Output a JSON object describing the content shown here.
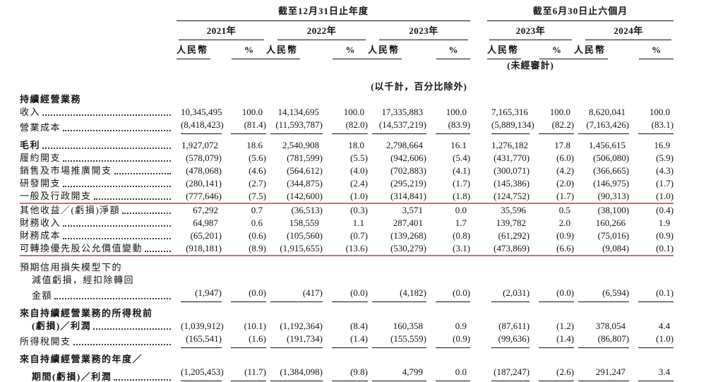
{
  "meta": {
    "annotation_color": "#e06666",
    "document_language": "zh-Hant"
  },
  "header": {
    "annual_period": "截至12月31日止年度",
    "interim_period": "截至6月30日止六個月",
    "currency_label": "人民幣",
    "percent_label": "%",
    "unaudited_note": "(未經審計)",
    "units_note": "(以千計，百分比除外)",
    "groups": [
      {
        "year": "2021年",
        "section": "annual"
      },
      {
        "year": "2022年",
        "section": "annual"
      },
      {
        "year": "2023年",
        "section": "annual"
      },
      {
        "year": "2023年",
        "section": "interim",
        "unaudited": true
      },
      {
        "year": "2024年",
        "section": "interim"
      }
    ]
  },
  "rows": [
    {
      "type": "section",
      "label": "持續經營業務",
      "bold": true
    },
    {
      "type": "data",
      "label": "收入",
      "values": [
        "10,345,495",
        "100.0",
        "14,134,695",
        "100.0",
        "17,335,883",
        "100.0",
        "7,165,316",
        "100.0",
        "8,620,041",
        "100.0"
      ]
    },
    {
      "type": "data",
      "label": "營業成本",
      "rule": "single",
      "values": [
        "(8,418,423)",
        "(81.4)",
        "(11,593,787)",
        "(82.0)",
        "(14,537,219)",
        "(83.9)",
        "(5,889,134)",
        "(82.2)",
        "(7,163,426)",
        "(83.1)"
      ]
    },
    {
      "type": "data",
      "label": "毛利",
      "bold": true,
      "gap": true,
      "values": [
        "1,927,072",
        "18.6",
        "2,540,908",
        "18.0",
        "2,798,664",
        "16.1",
        "1,276,182",
        "17.8",
        "1,456,615",
        "16.9"
      ]
    },
    {
      "type": "data",
      "label": "履約開支",
      "values": [
        "(578,079)",
        "(5.6)",
        "(781,599)",
        "(5.5)",
        "(942,606)",
        "(5.4)",
        "(431,770)",
        "(6.0)",
        "(506,080)",
        "(5.9)"
      ]
    },
    {
      "type": "data",
      "label": "銷售及市場推廣開支",
      "values": [
        "(478,068)",
        "(4.6)",
        "(564,612)",
        "(4.0)",
        "(702,883)",
        "(4.1)",
        "(300,071)",
        "(4.2)",
        "(366,665)",
        "(4.3)"
      ]
    },
    {
      "type": "data",
      "label": "研發開支",
      "values": [
        "(280,141)",
        "(2.7)",
        "(344,875)",
        "(2.4)",
        "(295,219)",
        "(1.7)",
        "(145,386)",
        "(2.0)",
        "(146,975)",
        "(1.7)"
      ]
    },
    {
      "type": "data",
      "label": "一般及行政開支",
      "redline": true,
      "values": [
        "(777,646)",
        "(7.5)",
        "(142,600)",
        "(1.0)",
        "(314,841)",
        "(1.8)",
        "(124,752)",
        "(1.7)",
        "(90,313)",
        "(1.0)"
      ]
    },
    {
      "type": "data",
      "label": "其他收益／(虧損)淨額",
      "values": [
        "67,292",
        "0.7",
        "(36,513)",
        "(0.3)",
        "3,571",
        "0.0",
        "35,596",
        "0.5",
        "(38,100)",
        "(0.4)"
      ]
    },
    {
      "type": "data",
      "label": "財務收入",
      "values": [
        "64,987",
        "0.6",
        "158,559",
        "1.1",
        "287,401",
        "1.7",
        "139,782",
        "2.0",
        "160,266",
        "1.9"
      ]
    },
    {
      "type": "data",
      "label": "財務成本",
      "values": [
        "(65,201)",
        "(0.6)",
        "(105,560)",
        "(0.7)",
        "(139,268)",
        "(0.8)",
        "(61,292)",
        "(0.9)",
        "(75,016)",
        "(0.9)"
      ]
    },
    {
      "type": "data",
      "label": "可轉換優先股公允價值變動",
      "redline": true,
      "values": [
        "(918,181)",
        "(8.9)",
        "(1,915,655)",
        "(13.6)",
        "(530,279)",
        "(3.1)",
        "(473,869)",
        "(6.6)",
        "(9,084)",
        "(0.1)"
      ]
    },
    {
      "type": "data",
      "pre_lines": [
        "預期信用損失模型下的",
        "減值虧損，經扣除轉回"
      ],
      "label": "金額",
      "gap": true,
      "rule": "single",
      "values": [
        "(1,947)",
        "(0.0)",
        "(417)",
        "(0.0)",
        "(4,182)",
        "(0.0)",
        "(2,031)",
        "(0.0)",
        "(6,594)",
        "(0.1)"
      ]
    },
    {
      "type": "data",
      "pre_lines": [
        "來自持續經營業務的所得稅前"
      ],
      "label": "(虧損)／利潤",
      "bold": true,
      "gap": true,
      "values": [
        "(1,039,912)",
        "(10.1)",
        "(1,192,364)",
        "(8.4)",
        "160,358",
        "0.9",
        "(87,611)",
        "(1.2)",
        "378,054",
        "4.4"
      ]
    },
    {
      "type": "data",
      "label": "所得稅開支",
      "rule": "single",
      "values": [
        "(165,541)",
        "(1.6)",
        "(191,734)",
        "(1.4)",
        "(155,559)",
        "(0.9)",
        "(99,636)",
        "(1.4)",
        "(86,807)",
        "(1.0)"
      ]
    },
    {
      "type": "data",
      "pre_lines": [
        "來自持續經營業務的年度／"
      ],
      "label": "期間(虧損)／利潤",
      "bold": true,
      "gap": true,
      "rule": "double",
      "values": [
        "(1,205,453)",
        "(11.7)",
        "(1,384,098)",
        "(9.8)",
        "4,799",
        "0.0",
        "(187,247)",
        "(2.6)",
        "291,247",
        "3.4"
      ]
    }
  ]
}
